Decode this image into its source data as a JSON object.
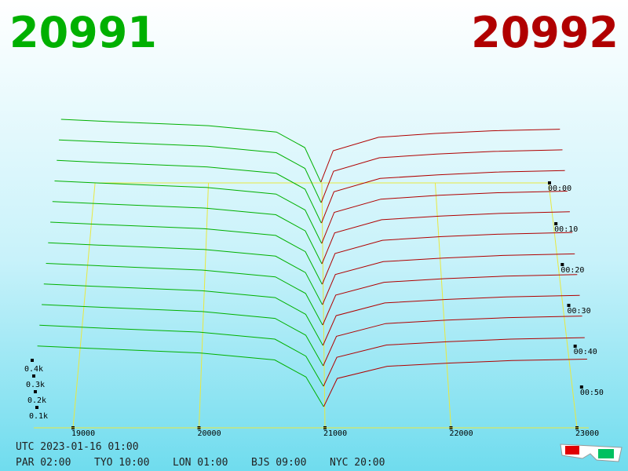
{
  "chart_data": {
    "type": "depth3d",
    "bid_label": "20991",
    "ask_label": "20992",
    "bid_color": "#00b000",
    "ask_color": "#b00000",
    "xlim": [
      19000,
      23000
    ],
    "xticks": [
      19000,
      20000,
      21000,
      22000,
      23000
    ],
    "yticks": [
      {
        "value": 100,
        "label": "0.1k"
      },
      {
        "value": 200,
        "label": "0.2k"
      },
      {
        "value": 300,
        "label": "0.3k"
      },
      {
        "value": 400,
        "label": "0.4k"
      }
    ],
    "tlim": [
      0,
      60
    ],
    "time_ticks": [
      {
        "value": 0,
        "label": "00:00"
      },
      {
        "value": 10,
        "label": "00:10"
      },
      {
        "value": 20,
        "label": "00:20"
      },
      {
        "value": 30,
        "label": "00:30"
      },
      {
        "value": 40,
        "label": "00:40"
      },
      {
        "value": 50,
        "label": "00:50"
      }
    ],
    "times": [
      0,
      5,
      10,
      15,
      20,
      25,
      30,
      35,
      40,
      45,
      50,
      55
    ],
    "bid_prices": [
      18700,
      19100,
      20000,
      20600,
      20850,
      20991
    ],
    "ask_prices": [
      20992,
      21100,
      21500,
      22000,
      22500,
      23100
    ],
    "bid_series": [
      [
        450,
        435,
        405,
        360,
        250,
        5
      ],
      [
        445,
        430,
        400,
        355,
        245,
        5
      ],
      [
        440,
        425,
        395,
        350,
        240,
        5
      ],
      [
        435,
        420,
        390,
        345,
        235,
        5
      ],
      [
        430,
        415,
        385,
        340,
        230,
        5
      ],
      [
        425,
        410,
        380,
        335,
        225,
        5
      ],
      [
        420,
        405,
        375,
        330,
        220,
        5
      ],
      [
        415,
        400,
        370,
        325,
        215,
        5
      ],
      [
        410,
        395,
        365,
        320,
        210,
        5
      ],
      [
        405,
        390,
        360,
        315,
        205,
        5
      ],
      [
        400,
        385,
        355,
        310,
        200,
        5
      ],
      [
        395,
        380,
        350,
        305,
        195,
        5
      ]
    ],
    "ask_series": [
      [
        5,
        228,
        323,
        350,
        369,
        380
      ],
      [
        5,
        225,
        319,
        345,
        364,
        375
      ],
      [
        5,
        222,
        315,
        340,
        359,
        370
      ],
      [
        5,
        219,
        310,
        336,
        354,
        365
      ],
      [
        5,
        216,
        306,
        331,
        349,
        360
      ],
      [
        5,
        213,
        302,
        327,
        344,
        355
      ],
      [
        5,
        207,
        293,
        317,
        335,
        345
      ],
      [
        5,
        204,
        289,
        313,
        330,
        340
      ],
      [
        5,
        201,
        285,
        308,
        325,
        335
      ],
      [
        5,
        198,
        281,
        304,
        320,
        330
      ],
      [
        5,
        192,
        272,
        294,
        310,
        320
      ],
      [
        5,
        186,
        264,
        285,
        301,
        310
      ]
    ]
  },
  "footer": {
    "utc": "UTC 2023-01-16 01:00",
    "clocks": [
      "PAR 02:00",
      "TYO 10:00",
      "LON 01:00",
      "BJS 09:00",
      "NYC 20:00"
    ]
  }
}
